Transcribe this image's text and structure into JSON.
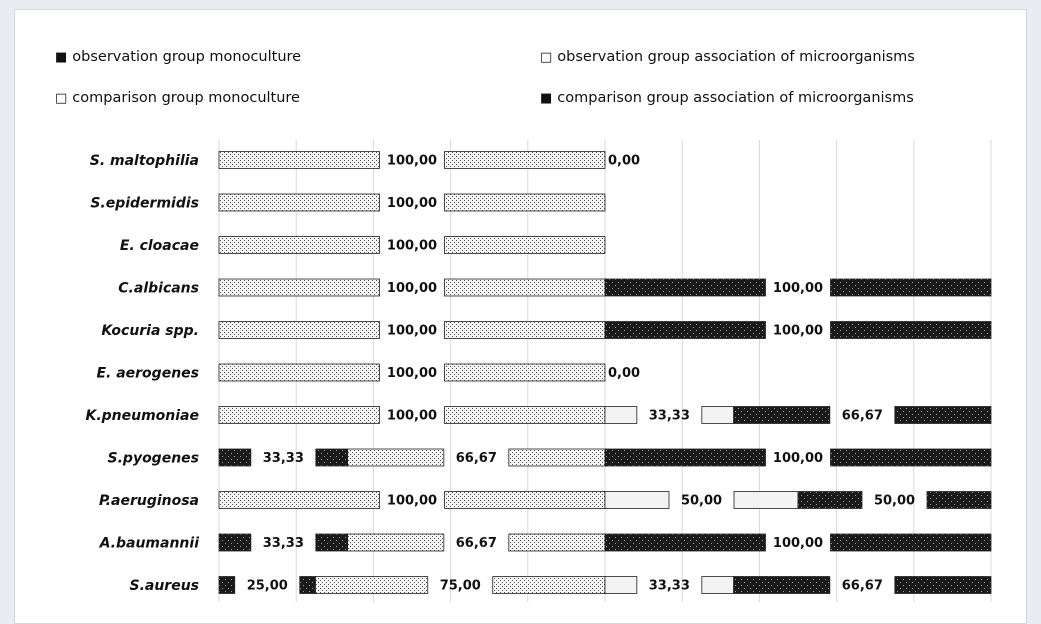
{
  "legend": [
    {
      "label": "observation group monoculture",
      "marker": "■"
    },
    {
      "label": "observation group association of microorganisms",
      "marker": "□"
    },
    {
      "label": "comparison group monoculture",
      "marker": "□"
    },
    {
      "label": "comparison group association of microorganisms",
      "marker": "■"
    }
  ],
  "chart_data": {
    "type": "bar",
    "orientation": "horizontal",
    "stacked": true,
    "categories": [
      "S. maltophilia",
      "S.epidermidis",
      "E. cloacae",
      "C.albicans",
      "Kocuria spp.",
      "E. aerogenes",
      "K.pneumoniae",
      "S.pyogenes",
      "P.aeruginosa",
      "A.baumannii",
      "S.aureus"
    ],
    "series": [
      {
        "name": "observation group monoculture",
        "values": [
          null,
          null,
          null,
          null,
          null,
          null,
          null,
          33.33,
          null,
          33.33,
          25.0
        ],
        "labels": [
          "",
          "",
          "",
          "",
          "",
          "",
          "",
          "33,33",
          "",
          "33,33",
          "25,00"
        ]
      },
      {
        "name": "observation group association of microorganisms",
        "values": [
          100,
          100,
          100,
          100,
          100,
          100,
          100,
          66.67,
          100,
          66.67,
          75.0
        ],
        "labels": [
          "100,00",
          "100,00",
          "100,00",
          "100,00",
          "100,00",
          "100,00",
          "100,00",
          "66,67",
          "100,00",
          "66,67",
          "75,00"
        ]
      },
      {
        "name": "comparison group monoculture",
        "values": [
          0,
          null,
          null,
          null,
          null,
          0,
          33.33,
          null,
          50.0,
          null,
          33.33
        ],
        "labels": [
          "0,00",
          "",
          "",
          "",
          "",
          "0,00",
          "33,33",
          "",
          "50,00",
          "",
          "33,33"
        ]
      },
      {
        "name": "comparison group association of microorganisms",
        "values": [
          null,
          null,
          null,
          100,
          100,
          null,
          66.67,
          100,
          50.0,
          100,
          66.67
        ],
        "labels": [
          "",
          "",
          "",
          "100,00",
          "100,00",
          "",
          "66,67",
          "100,00",
          "50,00",
          "100,00",
          "66,67"
        ]
      }
    ],
    "xlim": [
      0,
      200
    ],
    "grid": true,
    "legend_position": "top",
    "colors": {
      "dark": "#111111",
      "light": "#f3f3f3",
      "dotted": "#dcdcdc"
    }
  }
}
